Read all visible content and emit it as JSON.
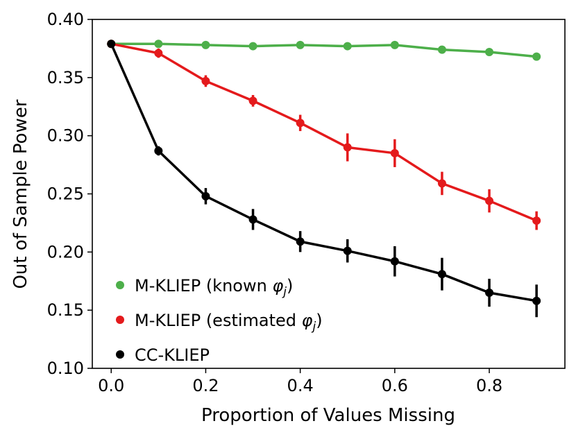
{
  "chart_data": {
    "type": "line",
    "xlabel": "Proportion of Values Missing",
    "ylabel": "Out of Sample Power",
    "xlim": [
      -0.04,
      0.96
    ],
    "ylim": [
      0.1,
      0.4
    ],
    "x_ticks": [
      "0.0",
      "0.2",
      "0.4",
      "0.6",
      "0.8"
    ],
    "y_ticks": [
      "0.10",
      "0.15",
      "0.20",
      "0.25",
      "0.30",
      "0.35",
      "0.40"
    ],
    "legend_position": "lower-left",
    "grid": false,
    "series": [
      {
        "name": "M-KLIEP (known ",
        "name_symbol": "φ",
        "name_subscript": "j",
        "name_suffix": ")",
        "color": "#4daf4a",
        "x": [
          0.0,
          0.1,
          0.2,
          0.3,
          0.4,
          0.5,
          0.6,
          0.7,
          0.8,
          0.9
        ],
        "y": [
          0.379,
          0.379,
          0.378,
          0.377,
          0.378,
          0.377,
          0.378,
          0.374,
          0.372,
          0.368
        ],
        "err": [
          0.002,
          0.002,
          0.002,
          0.002,
          0.002,
          0.002,
          0.002,
          0.003,
          0.003,
          0.003
        ]
      },
      {
        "name": "M-KLIEP (estimated ",
        "name_symbol": "φ",
        "name_subscript": "j",
        "name_suffix": ")",
        "color": "#e41a1c",
        "x": [
          0.0,
          0.1,
          0.2,
          0.3,
          0.4,
          0.5,
          0.6,
          0.7,
          0.8,
          0.9
        ],
        "y": [
          0.379,
          0.371,
          0.347,
          0.33,
          0.311,
          0.29,
          0.285,
          0.259,
          0.244,
          0.227
        ],
        "err": [
          0.002,
          0.004,
          0.005,
          0.005,
          0.007,
          0.012,
          0.012,
          0.01,
          0.01,
          0.008
        ]
      },
      {
        "name": "CC-KLIEP",
        "color": "#000000",
        "x": [
          0.0,
          0.1,
          0.2,
          0.3,
          0.4,
          0.5,
          0.6,
          0.7,
          0.8,
          0.9
        ],
        "y": [
          0.379,
          0.287,
          0.248,
          0.228,
          0.209,
          0.201,
          0.192,
          0.181,
          0.165,
          0.158
        ],
        "err": [
          0.002,
          0.004,
          0.007,
          0.009,
          0.009,
          0.01,
          0.013,
          0.014,
          0.012,
          0.014
        ]
      }
    ]
  }
}
